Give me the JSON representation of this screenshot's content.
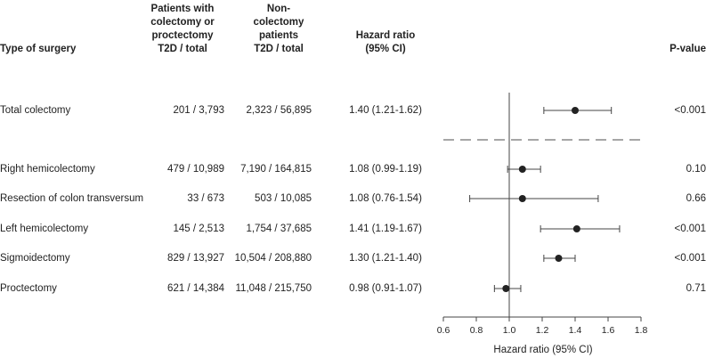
{
  "headers": {
    "type": "Type of surgery",
    "colectomy": [
      "Patients with",
      "colectomy or",
      "proctectomy",
      "T2D / total"
    ],
    "noncolectomy": [
      "Non-",
      "colectomy",
      "patients",
      "T2D / total"
    ],
    "hr": [
      "Hazard ratio",
      "(95% CI)"
    ],
    "pvalue": "P-value"
  },
  "rows": [
    {
      "label": "Total colectomy",
      "colectomy": "201 / 3,793",
      "noncolectomy": "2,323 / 56,895",
      "hr_text": "1.40 (1.21-1.62)",
      "p": "<0.001"
    },
    {
      "label": "Right hemicolectomy",
      "colectomy": "479 / 10,989",
      "noncolectomy": "7,190 / 164,815",
      "hr_text": "1.08 (0.99-1.19)",
      "p": "0.10"
    },
    {
      "label": "Resection of colon transversum",
      "colectomy": "33 / 673",
      "noncolectomy": "503 / 10,085",
      "hr_text": "1.08 (0.76-1.54)",
      "p": "0.66"
    },
    {
      "label": "Left hemicolectomy",
      "colectomy": "145 / 2,513",
      "noncolectomy": "1,754 / 37,685",
      "hr_text": "1.41 (1.19-1.67)",
      "p": "<0.001"
    },
    {
      "label": "Sigmoidectomy",
      "colectomy": "829 / 13,927",
      "noncolectomy": "10,504 / 208,880",
      "hr_text": "1.30 (1.21-1.40)",
      "p": "<0.001"
    },
    {
      "label": "Proctectomy",
      "colectomy": "621 / 14,384",
      "noncolectomy": "11,048 / 215,750",
      "hr_text": "0.98 (0.91-1.07)",
      "p": "0.71"
    }
  ],
  "chart_data": {
    "type": "forest",
    "xlabel": "Hazard ratio (95% CI)",
    "xlim": [
      0.6,
      1.8
    ],
    "xticks": [
      "0.6",
      "0.8",
      "1.0",
      "1.2",
      "1.4",
      "1.6",
      "1.8"
    ],
    "reference_line": 1.0,
    "separator": "dashed line between total colectomy and segmental resections",
    "points": [
      {
        "label": "Total colectomy",
        "hr": 1.4,
        "lo": 1.21,
        "hi": 1.62
      },
      {
        "label": "Right hemicolectomy",
        "hr": 1.08,
        "lo": 0.99,
        "hi": 1.19
      },
      {
        "label": "Resection of colon transversum",
        "hr": 1.08,
        "lo": 0.76,
        "hi": 1.54
      },
      {
        "label": "Left hemicolectomy",
        "hr": 1.41,
        "lo": 1.19,
        "hi": 1.67
      },
      {
        "label": "Sigmoidectomy",
        "hr": 1.3,
        "lo": 1.21,
        "hi": 1.4
      },
      {
        "label": "Proctectomy",
        "hr": 0.98,
        "lo": 0.91,
        "hi": 1.07
      }
    ],
    "colors": {
      "marker": "#222222",
      "line": "#444444",
      "separator": "#888888"
    }
  }
}
